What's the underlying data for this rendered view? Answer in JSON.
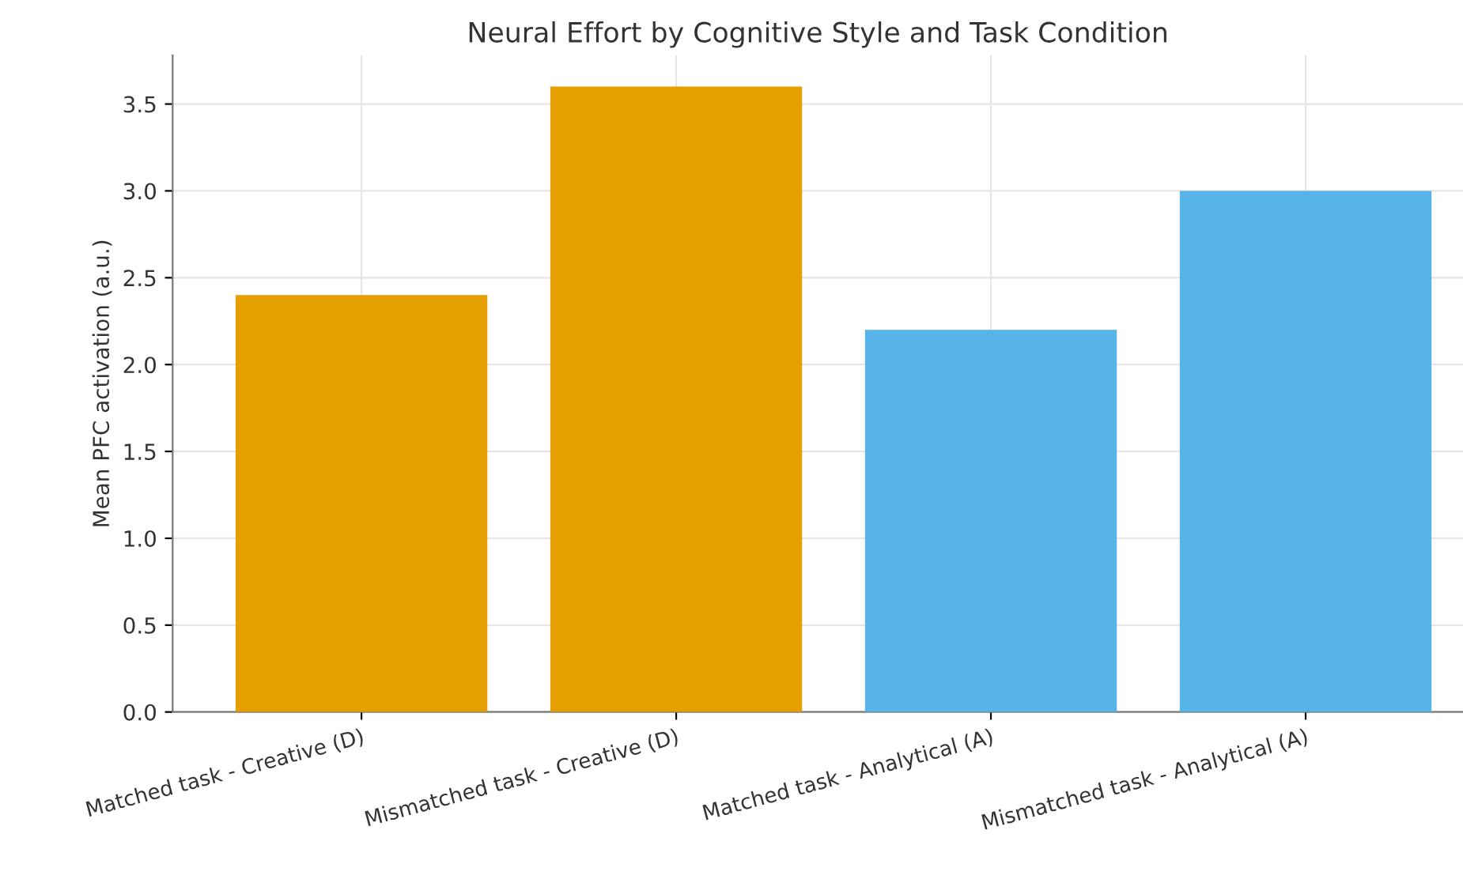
{
  "chart_data": {
    "type": "bar",
    "title": "Neural Effort by Cognitive Style and Task Condition",
    "ylabel": "Mean PFC activation (a.u.)",
    "categories": [
      "Matched task - Creative (D)",
      "Mismatched task - Creative (D)",
      "Matched task - Analytical (A)",
      "Mismatched task - Analytical (A)"
    ],
    "values": [
      2.4,
      3.6,
      2.2,
      3.0
    ],
    "colors": [
      "#e69f00",
      "#e69f00",
      "#56b4e9",
      "#56b4e9"
    ],
    "ylim": [
      0,
      3.78
    ],
    "yticks": [
      {
        "value": 0,
        "label": "0.0"
      },
      {
        "value": 0.5,
        "label": "0.5"
      },
      {
        "value": 1,
        "label": "1.0"
      },
      {
        "value": 1.5,
        "label": "1.5"
      },
      {
        "value": 2,
        "label": "2.0"
      },
      {
        "value": 2.5,
        "label": "2.5"
      },
      {
        "value": 3,
        "label": "3.0"
      },
      {
        "value": 3.5,
        "label": "3.5"
      }
    ],
    "grid": true
  }
}
